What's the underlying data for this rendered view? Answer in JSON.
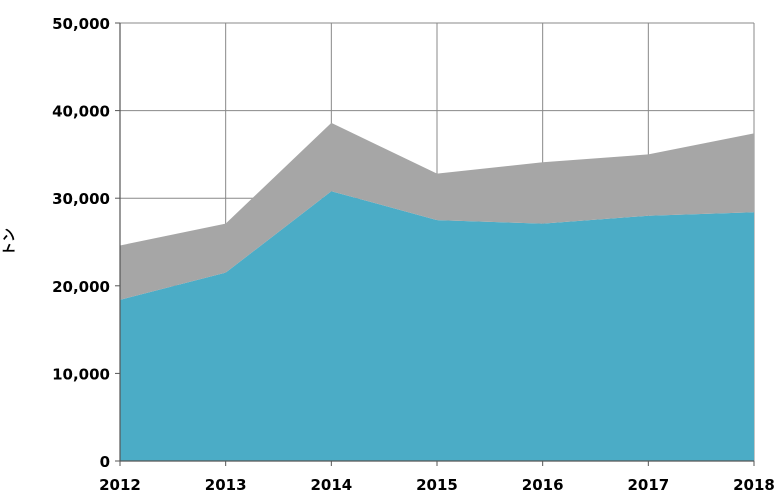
{
  "chart_data": {
    "type": "area",
    "stacked": true,
    "x": [
      "2012",
      "2013",
      "2014",
      "2015",
      "2016",
      "2017",
      "2018"
    ],
    "series": [
      {
        "values": [
          18400,
          21500,
          30800,
          27500,
          27100,
          28000,
          28400
        ],
        "color": "#4BACC6"
      },
      {
        "values": [
          6200,
          5600,
          7800,
          5300,
          7000,
          7000,
          9000
        ],
        "color": "#A6A6A6"
      }
    ],
    "ylabel": "トン",
    "ylim": [
      0,
      50000
    ],
    "yticks": [
      "0",
      "10,000",
      "20,000",
      "30,000",
      "40,000",
      "50,000"
    ],
    "grid": true,
    "legend": "none"
  }
}
